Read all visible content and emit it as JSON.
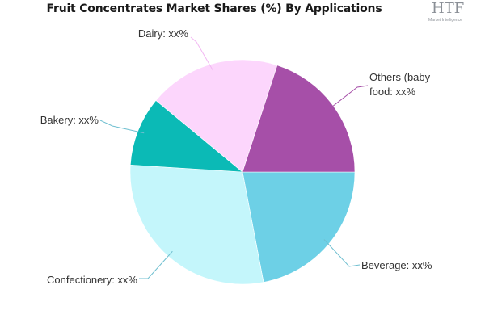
{
  "title": "Fruit Concentrates Market Shares (%) By Applications",
  "logo": {
    "mark": "HTF",
    "sub": "Market Intelligence"
  },
  "colors": {
    "leader": "#6fbfd0",
    "slice_stroke": "#ffffff"
  },
  "chart_data": {
    "type": "pie",
    "title": "Fruit Concentrates Market Shares (%) By Applications",
    "start_angle_deg": 90,
    "direction": "clockwise",
    "slices": [
      {
        "label": "Beverage: xx%",
        "value": 22,
        "color": "#6dd0e6"
      },
      {
        "label": "Confectionery: xx%",
        "value": 29,
        "color": "#c4f6fb"
      },
      {
        "label": "Bakery: xx%",
        "value": 10,
        "color": "#0bbab6"
      },
      {
        "label": "Dairy: xx%",
        "value": 19,
        "color": "#fcd6fc"
      },
      {
        "label": "Others (baby food: xx%",
        "label_lines": [
          "Others (baby",
          "food: xx%"
        ],
        "value": 20,
        "color": "#a64fa8"
      }
    ]
  }
}
